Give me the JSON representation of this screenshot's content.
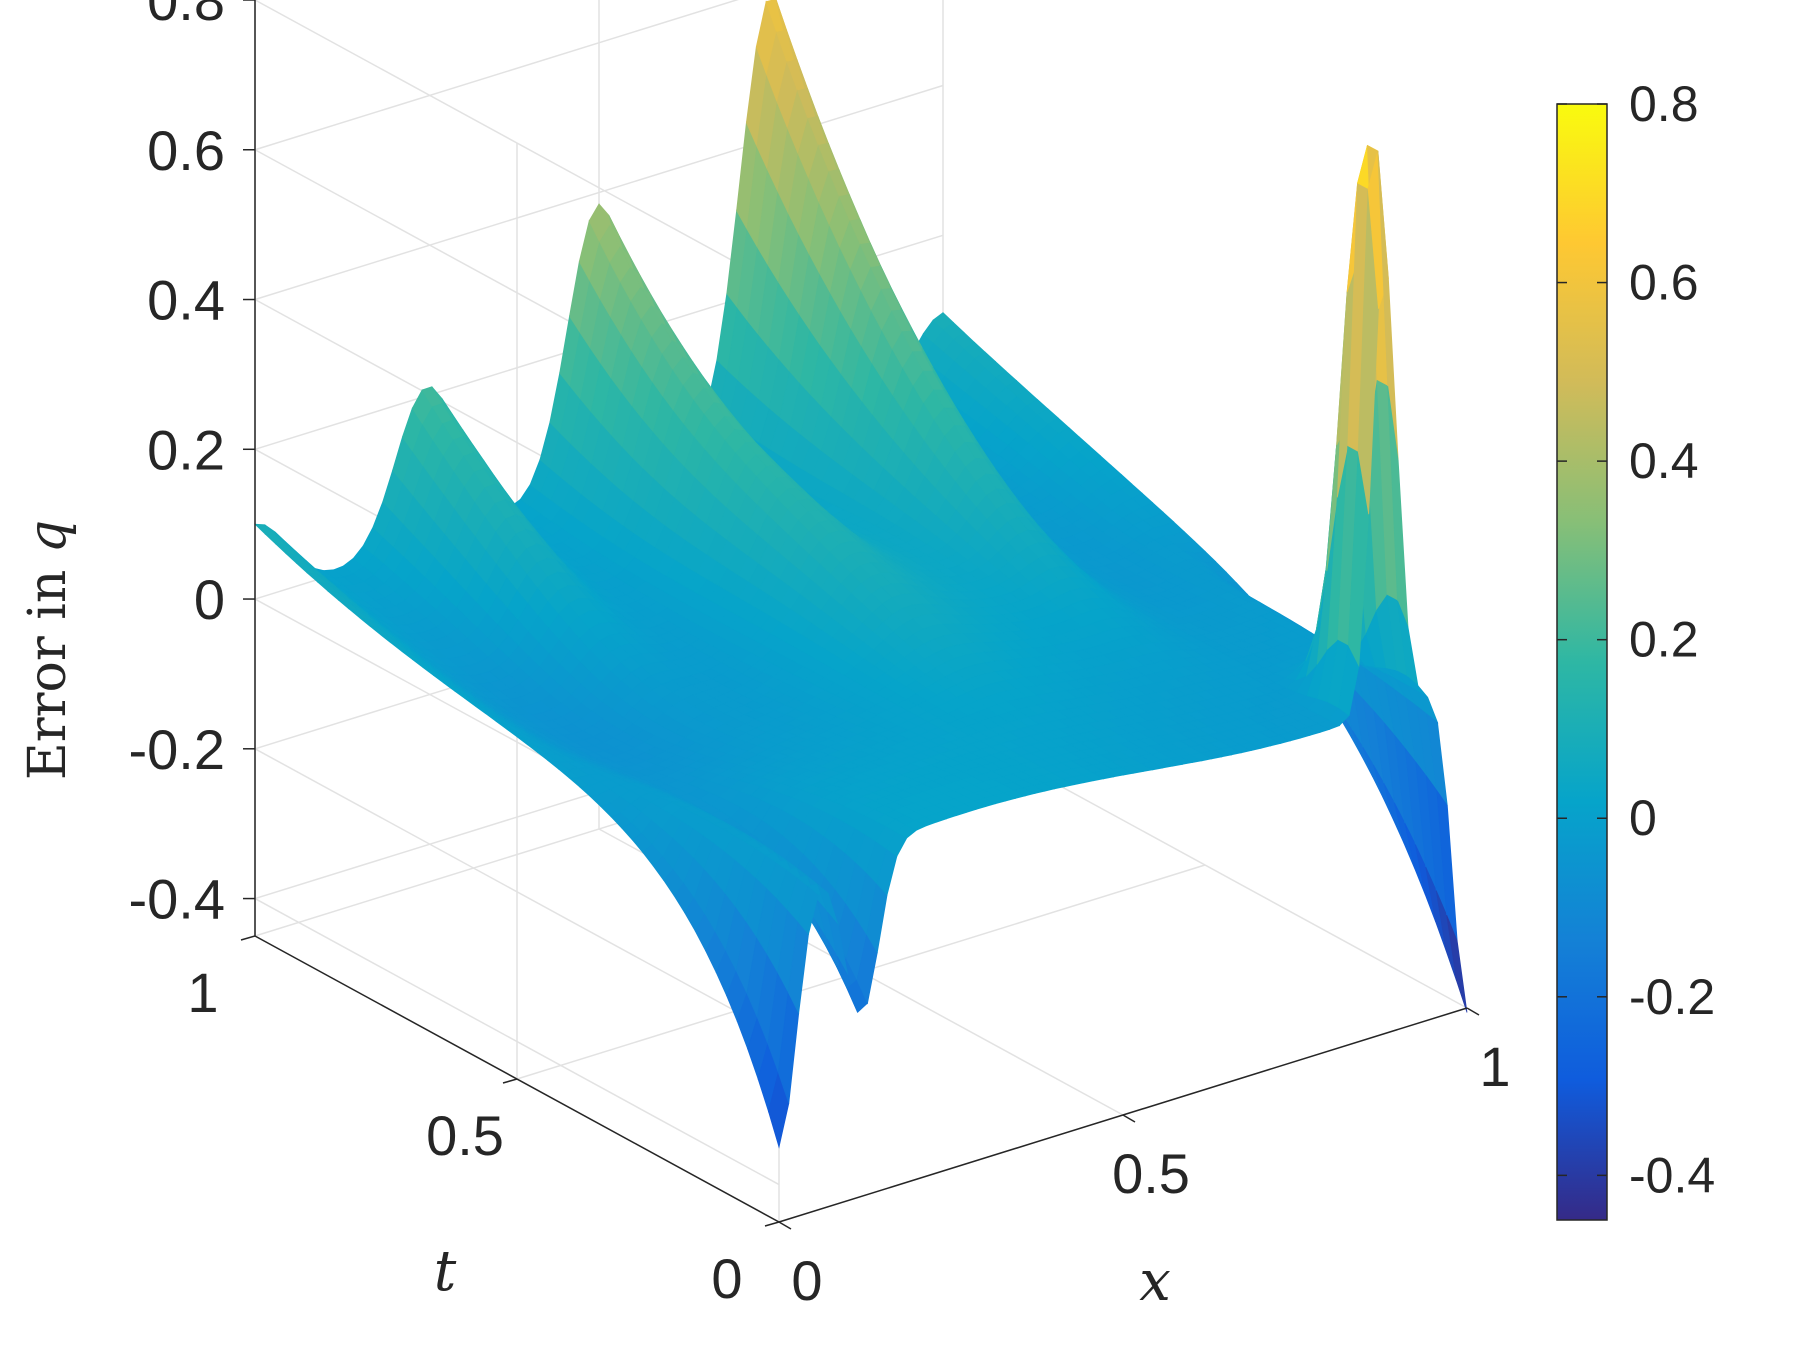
{
  "chart_data": {
    "type": "surface",
    "title": "",
    "xlabel": "x",
    "ylabel": "t",
    "zlabel_prefix": "Error in ",
    "zlabel_var": "q",
    "xlim": [
      0,
      1
    ],
    "ylim": [
      0,
      1
    ],
    "zlim": [
      -0.45,
      0.8
    ],
    "x_ticks": [
      "0",
      "0.5",
      "1"
    ],
    "y_ticks": [
      "0",
      "0.5",
      "1"
    ],
    "z_ticks": [
      "-0.4",
      "-0.2",
      "0",
      "0.2",
      "0.4",
      "0.6",
      "0.8"
    ],
    "x_tick_values": [
      0,
      0.5,
      1
    ],
    "y_tick_values": [
      0,
      0.5,
      1
    ],
    "z_tick_values": [
      -0.4,
      -0.2,
      0,
      0.2,
      0.4,
      0.6,
      0.8
    ],
    "colormap": "parula",
    "colorbar": {
      "range": [
        -0.45,
        0.8
      ],
      "ticks": [
        "-0.4",
        "-0.2",
        "0",
        "0.2",
        "0.4",
        "0.6",
        "0.8"
      ],
      "tick_values": [
        -0.4,
        -0.2,
        0,
        0.2,
        0.4,
        0.6,
        0.8
      ],
      "colors": [
        "#352a87",
        "#0f5cdd",
        "#1481d6",
        "#06a4ca",
        "#2eb7a4",
        "#87bf77",
        "#d1bb59",
        "#fec832",
        "#f9fb0e"
      ]
    },
    "grid": true,
    "surface_features": {
      "spike": {
        "x": 0.88,
        "t": 0.03,
        "peak": 0.8
      },
      "ridges_at_t1": [
        {
          "x": 0.0,
          "peak": 0.1
        },
        {
          "x": 0.25,
          "peak": 0.21
        },
        {
          "x": 0.5,
          "peak": 0.38
        },
        {
          "x": 0.75,
          "peak": 0.6
        },
        {
          "x": 1.0,
          "peak": 0.1
        }
      ],
      "dips_at_t0": [
        {
          "x": 0.0,
          "value": -0.35
        },
        {
          "x": 0.12,
          "value": -0.22
        }
      ],
      "x1_edge_dip": -0.45
    }
  }
}
